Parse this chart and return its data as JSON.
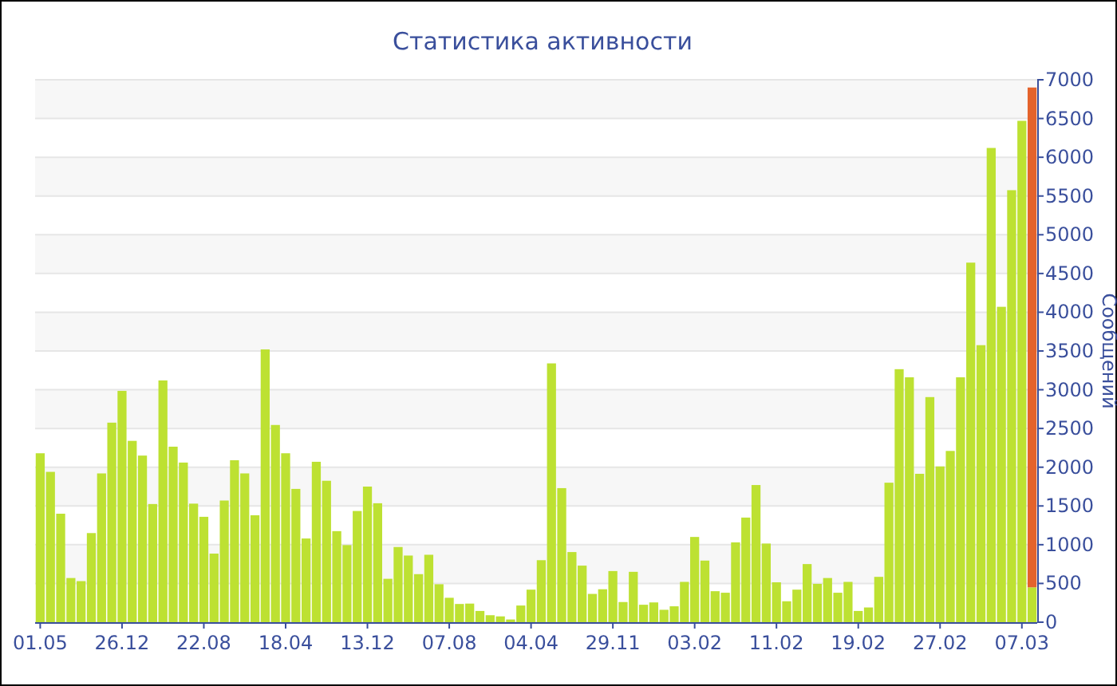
{
  "chart_data": {
    "type": "bar",
    "title": "Статистика активности",
    "ylabel": "Сообщений",
    "stacked": true,
    "categories": [
      "01.05",
      null,
      null,
      null,
      null,
      null,
      null,
      null,
      "26.12",
      null,
      null,
      null,
      null,
      null,
      null,
      null,
      "22.08",
      null,
      null,
      null,
      null,
      null,
      null,
      null,
      "18.04",
      null,
      null,
      null,
      null,
      null,
      null,
      null,
      "13.12",
      null,
      null,
      null,
      null,
      null,
      null,
      null,
      "07.08",
      null,
      null,
      null,
      null,
      null,
      null,
      null,
      "04.04",
      null,
      null,
      null,
      null,
      null,
      null,
      null,
      "29.11",
      null,
      null,
      null,
      null,
      null,
      null,
      null,
      "03.02",
      null,
      null,
      null,
      null,
      null,
      null,
      null,
      "11.02",
      null,
      null,
      null,
      null,
      null,
      null,
      null,
      "19.02",
      null,
      null,
      null,
      null,
      null,
      null,
      null,
      "27.02",
      null,
      null,
      null,
      null,
      null,
      null,
      null,
      "07.03",
      null
    ],
    "series": [
      {
        "color": "#bde132",
        "values": [
          2180,
          1940,
          1400,
          570,
          530,
          1150,
          1920,
          2575,
          2985,
          2340,
          2150,
          1525,
          3120,
          2265,
          2060,
          1530,
          1360,
          885,
          1570,
          2090,
          1920,
          1380,
          3520,
          2545,
          2180,
          1720,
          1080,
          2070,
          1825,
          1175,
          995,
          1435,
          1750,
          1535,
          560,
          970,
          860,
          620,
          870,
          490,
          315,
          235,
          240,
          145,
          90,
          75,
          35,
          215,
          420,
          800,
          3340,
          1730,
          905,
          730,
          365,
          425,
          660,
          260,
          650,
          225,
          255,
          160,
          205,
          520,
          1100,
          795,
          400,
          380,
          1030,
          1350,
          1770,
          1015,
          515,
          270,
          420,
          750,
          495,
          570,
          380,
          520,
          145,
          190,
          585,
          1800,
          3265,
          3160,
          1915,
          2905,
          2010,
          2210,
          3160,
          4640,
          3575,
          6120,
          4070,
          5575,
          6470,
          450
        ]
      },
      {
        "color": "#e4632c",
        "values": [
          null,
          null,
          null,
          null,
          null,
          null,
          null,
          null,
          null,
          null,
          null,
          null,
          null,
          null,
          null,
          null,
          null,
          null,
          null,
          null,
          null,
          null,
          null,
          null,
          null,
          null,
          null,
          null,
          null,
          null,
          null,
          null,
          null,
          null,
          null,
          null,
          null,
          null,
          null,
          null,
          null,
          null,
          null,
          null,
          null,
          null,
          null,
          null,
          null,
          null,
          null,
          null,
          null,
          null,
          null,
          null,
          null,
          null,
          null,
          null,
          null,
          null,
          null,
          null,
          null,
          null,
          null,
          null,
          null,
          null,
          null,
          null,
          null,
          null,
          null,
          null,
          null,
          null,
          null,
          null,
          null,
          null,
          null,
          null,
          null,
          null,
          null,
          null,
          null,
          null,
          null,
          null,
          null,
          null,
          null,
          null,
          null,
          6450
        ]
      }
    ],
    "ylim": [
      0,
      7000
    ],
    "yticks": [
      0,
      500,
      1000,
      1500,
      2000,
      2500,
      3000,
      3500,
      4000,
      4500,
      5000,
      5500,
      6000,
      6500,
      7000
    ],
    "grid": "y"
  }
}
